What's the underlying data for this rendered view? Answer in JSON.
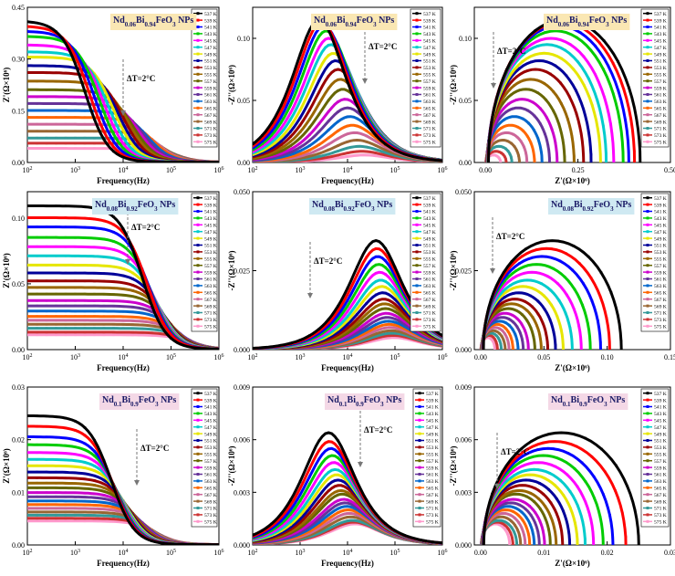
{
  "temps": [
    "537 K",
    "539 K",
    "541 K",
    "543 K",
    "545 K",
    "547 K",
    "549 K",
    "551 K",
    "553 K",
    "555 K",
    "557 K",
    "559 K",
    "561 K",
    "563 K",
    "565 K",
    "567 K",
    "569 K",
    "571 K",
    "573 K",
    "575 K"
  ],
  "colors": [
    "#000000",
    "#ff0000",
    "#0000ff",
    "#00cc00",
    "#ff00ff",
    "#00cccc",
    "#e6e600",
    "#000099",
    "#990000",
    "#996600",
    "#666600",
    "#cc00cc",
    "#663399",
    "#0066cc",
    "#ff6600",
    "#cc6699",
    "#996633",
    "#339999",
    "#cc3333",
    "#ff99cc"
  ],
  "chart_data": [
    {
      "type": "line",
      "panel": "a",
      "title": "Nd0.06Bi0.94FeO3 NPs",
      "xlabel": "Frequency(Hz)",
      "ylabel": "Z'(Ω×10⁶)",
      "xscale": "log",
      "xlim": [
        100,
        1000000
      ],
      "ylim": [
        0,
        0.45
      ],
      "yticks": [
        "0.00",
        "0.15",
        "0.30",
        "0.45"
      ],
      "xticks": [
        "10²",
        "10³",
        "10⁴",
        "10⁵",
        "10⁶"
      ],
      "annotation": "ΔT=2°C",
      "shape": "real",
      "peaks": [
        0.41,
        0.395,
        0.38,
        0.365,
        0.34,
        0.32,
        0.305,
        0.28,
        0.26,
        0.235,
        0.21,
        0.19,
        0.17,
        0.15,
        0.13,
        0.11,
        0.09,
        0.07,
        0.055,
        0.04
      ],
      "fc": [
        3.2,
        3.3,
        3.4,
        3.5,
        3.6,
        3.7,
        3.8,
        3.9,
        4.0,
        4.1,
        4.2,
        4.3,
        4.4,
        4.5,
        4.6,
        4.7,
        4.8,
        4.9,
        5.0,
        5.1
      ]
    },
    {
      "type": "line",
      "panel": "b",
      "title": "Nd0.06Bi0.94FeO3 NPs",
      "xlabel": "Frequency(Hz)",
      "ylabel": "-Z''(Ω×10⁶)",
      "xscale": "log",
      "xlim": [
        100,
        1000000
      ],
      "ylim": [
        0,
        0.125
      ],
      "yticks": [
        "0.00",
        "0.05",
        "0.10"
      ],
      "xticks": [
        "10²",
        "10³",
        "10⁴",
        "10⁵",
        "10⁶"
      ],
      "annotation": "ΔT=2°C",
      "shape": "imag",
      "peaks": [
        0.115,
        0.113,
        0.11,
        0.106,
        0.1,
        0.095,
        0.088,
        0.082,
        0.075,
        0.067,
        0.059,
        0.051,
        0.044,
        0.037,
        0.03,
        0.024,
        0.018,
        0.013,
        0.009,
        0.006
      ],
      "fc": [
        3.4,
        3.45,
        3.5,
        3.55,
        3.6,
        3.65,
        3.7,
        3.75,
        3.8,
        3.85,
        3.9,
        3.95,
        4.0,
        4.05,
        4.1,
        4.15,
        4.2,
        4.25,
        4.3,
        4.35
      ]
    },
    {
      "type": "scatter",
      "panel": "c",
      "title": "Nd0.06Bi0.94FeO3 NPs",
      "xlabel": "Z'(Ω×10⁶)",
      "ylabel": "-Z''(Ω×10⁶)",
      "xlim": [
        -0.03,
        0.5
      ],
      "ylim": [
        0,
        0.125
      ],
      "yticks": [
        "0.00",
        "0.05",
        "0.10"
      ],
      "xticks": [
        "0.00",
        "0.25",
        "0.50"
      ],
      "annotation": "ΔT=2°C",
      "shape": "arc",
      "peaks": [
        0.115,
        0.113,
        0.11,
        0.106,
        0.1,
        0.095,
        0.088,
        0.082,
        0.075,
        0.067,
        0.059,
        0.051,
        0.044,
        0.037,
        0.03,
        0.024,
        0.018,
        0.013,
        0.009,
        0.006
      ],
      "diam": [
        0.41,
        0.395,
        0.38,
        0.365,
        0.34,
        0.32,
        0.305,
        0.28,
        0.26,
        0.235,
        0.21,
        0.19,
        0.17,
        0.15,
        0.13,
        0.11,
        0.09,
        0.07,
        0.055,
        0.04
      ]
    },
    {
      "type": "line",
      "panel": "d",
      "title": "Nd0.08Bi0.92FeO3 NPs",
      "xlabel": "Frequency(Hz)",
      "ylabel": "Z'(Ω×10⁶)",
      "xscale": "log",
      "xlim": [
        100,
        1000000
      ],
      "ylim": [
        0,
        0.12
      ],
      "yticks": [
        "0.00",
        "0.05",
        "0.10"
      ],
      "xticks": [
        "10²",
        "10³",
        "10⁴",
        "10⁵",
        "10⁶"
      ],
      "annotation": "ΔT=2°C",
      "shape": "real",
      "peaks": [
        0.109,
        0.1,
        0.093,
        0.085,
        0.078,
        0.071,
        0.064,
        0.058,
        0.052,
        0.047,
        0.042,
        0.037,
        0.033,
        0.029,
        0.025,
        0.022,
        0.019,
        0.016,
        0.013,
        0.011
      ],
      "fc": [
        4.4,
        4.5,
        4.55,
        4.6,
        4.65,
        4.7,
        4.75,
        4.8,
        4.85,
        4.9,
        4.95,
        5.0,
        5.05,
        5.1,
        5.15,
        5.2,
        5.25,
        5.3,
        5.35,
        5.4
      ]
    },
    {
      "type": "line",
      "panel": "e",
      "title": "Nd0.08Bi0.92FeO3 NPs",
      "xlabel": "Frequency(Hz)",
      "ylabel": "-Z''(Ω×10⁶)",
      "xscale": "log",
      "xlim": [
        100,
        1000000
      ],
      "ylim": [
        0,
        0.05
      ],
      "yticks": [
        "0.000",
        "0.025",
        "0.050"
      ],
      "xticks": [
        "10²",
        "10³",
        "10⁴",
        "10⁵",
        "10⁶"
      ],
      "annotation": "ΔT=2°C",
      "shape": "imag",
      "peaks": [
        0.0345,
        0.032,
        0.0295,
        0.027,
        0.0245,
        0.022,
        0.02,
        0.018,
        0.016,
        0.0145,
        0.013,
        0.0115,
        0.0102,
        0.009,
        0.008,
        0.007,
        0.006,
        0.0052,
        0.0045,
        0.0038
      ],
      "fc": [
        4.6,
        4.62,
        4.64,
        4.66,
        4.68,
        4.7,
        4.72,
        4.74,
        4.76,
        4.78,
        4.8,
        4.82,
        4.84,
        4.86,
        4.88,
        4.9,
        4.92,
        4.94,
        4.96,
        4.98
      ]
    },
    {
      "type": "scatter",
      "panel": "f",
      "title": "Nd0.08Bi0.92FeO3 NPs",
      "xlabel": "Z'(Ω×10⁶)",
      "ylabel": "-Z''(Ω×10⁶)",
      "xlim": [
        -0.005,
        0.15
      ],
      "ylim": [
        0,
        0.05
      ],
      "yticks": [
        "0.000",
        "0.025",
        "0.050"
      ],
      "xticks": [
        "0.00",
        "0.05",
        "0.10",
        "0.15"
      ],
      "annotation": "ΔT=2°C",
      "shape": "arc",
      "peaks": [
        0.0345,
        0.032,
        0.0295,
        0.027,
        0.0245,
        0.022,
        0.02,
        0.018,
        0.016,
        0.0145,
        0.013,
        0.0115,
        0.0102,
        0.009,
        0.008,
        0.007,
        0.006,
        0.0052,
        0.0045,
        0.0038
      ],
      "diam": [
        0.109,
        0.1,
        0.093,
        0.085,
        0.078,
        0.071,
        0.064,
        0.058,
        0.052,
        0.047,
        0.042,
        0.037,
        0.033,
        0.029,
        0.025,
        0.022,
        0.019,
        0.016,
        0.013,
        0.011
      ]
    },
    {
      "type": "line",
      "panel": "g",
      "title": "Nd0.1Bi0.9FeO3 NPs",
      "xlabel": "Frequency(Hz)",
      "ylabel": "Z'(Ω×10⁶)",
      "xscale": "log",
      "xlim": [
        100,
        1000000
      ],
      "ylim": [
        0,
        0.03
      ],
      "yticks": [
        "0.00",
        "0.01",
        "0.02",
        "0.03"
      ],
      "xticks": [
        "10²",
        "10³",
        "10⁴",
        "10⁵",
        "10⁶"
      ],
      "annotation": "ΔT=2°C",
      "shape": "real",
      "peaks": [
        0.0245,
        0.0225,
        0.0205,
        0.019,
        0.0175,
        0.0162,
        0.015,
        0.0138,
        0.0127,
        0.0117,
        0.0108,
        0.0099,
        0.0091,
        0.0083,
        0.0076,
        0.0069,
        0.0062,
        0.0056,
        0.005,
        0.0045
      ],
      "fc": [
        3.75,
        3.8,
        3.85,
        3.9,
        3.95,
        4.0,
        4.05,
        4.1,
        4.15,
        4.2,
        4.25,
        4.3,
        4.35,
        4.4,
        4.45,
        4.5,
        4.55,
        4.6,
        4.65,
        4.7
      ]
    },
    {
      "type": "line",
      "panel": "h",
      "title": "Nd0.1Bi0.9FeO3 NPs",
      "xlabel": "Frequency(Hz)",
      "ylabel": "-Z''(Ω×10⁶)",
      "xscale": "log",
      "xlim": [
        100,
        1000000
      ],
      "ylim": [
        0,
        0.009
      ],
      "yticks": [
        "0.000",
        "0.003",
        "0.006",
        "0.009"
      ],
      "xticks": [
        "10²",
        "10³",
        "10⁴",
        "10⁵",
        "10⁶"
      ],
      "annotation": "ΔT=2°C",
      "shape": "imag",
      "legendLabels": [
        "537 K",
        "539 K",
        "541 K",
        "543 K",
        "545 K",
        "547 K",
        "549 K",
        "551 K",
        "553 K",
        "555 K",
        "557 K",
        "559 K",
        "561 K",
        "563 K",
        "565 K",
        "567 K",
        "569 K",
        "571 K",
        "573 K",
        "575 K"
      ],
      "peaks": [
        0.0064,
        0.0059,
        0.0055,
        0.0051,
        0.0047,
        0.0043,
        0.004,
        0.0037,
        0.0034,
        0.0031,
        0.0029,
        0.0026,
        0.0024,
        0.0022,
        0.002,
        0.0018,
        0.0016,
        0.0014,
        0.0013,
        0.0012
      ],
      "fc": [
        3.6,
        3.62,
        3.65,
        3.68,
        3.71,
        3.74,
        3.77,
        3.8,
        3.83,
        3.86,
        3.89,
        3.92,
        3.95,
        3.98,
        4.01,
        4.04,
        4.07,
        4.1,
        4.13,
        4.16
      ]
    },
    {
      "type": "scatter",
      "panel": "i",
      "title": "Nd0.1Bi0.9FeO3 NPs",
      "xlabel": "Z'(Ω×10⁶)",
      "ylabel": "-Z''(Ω×10⁶)",
      "xlim": [
        -0.001,
        0.03
      ],
      "ylim": [
        0,
        0.009
      ],
      "yticks": [
        "0.000",
        "0.003",
        "0.006",
        "0.009"
      ],
      "xticks": [
        "0.00",
        "0.01",
        "0.02",
        "0.03"
      ],
      "annotation": "ΔT=2°C",
      "shape": "arc",
      "peaks": [
        0.0064,
        0.0059,
        0.0055,
        0.0051,
        0.0047,
        0.0043,
        0.004,
        0.0037,
        0.0034,
        0.0031,
        0.0029,
        0.0026,
        0.0024,
        0.0022,
        0.002,
        0.0018,
        0.0016,
        0.0014,
        0.0013,
        0.0012
      ],
      "diam": [
        0.0245,
        0.0225,
        0.0205,
        0.019,
        0.0175,
        0.0162,
        0.015,
        0.0138,
        0.0127,
        0.0117,
        0.0108,
        0.0099,
        0.0091,
        0.0083,
        0.0076,
        0.0069,
        0.0062,
        0.0056,
        0.005,
        0.0045
      ]
    }
  ]
}
